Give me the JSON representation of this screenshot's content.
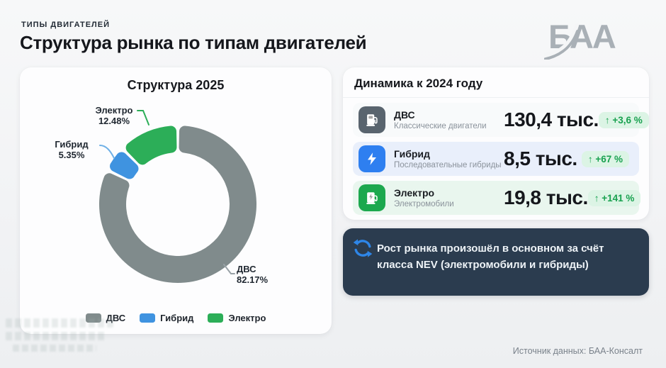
{
  "header": {
    "kicker": "ТИПЫ ДВИГАТЕЛЕЙ",
    "title": "Структура рынка по типам двигателей",
    "logo": "БАА"
  },
  "chart_data": {
    "type": "pie",
    "donut": true,
    "title": "Структура 2025",
    "labels": [
      "ДВС",
      "Гибрид",
      "Электро"
    ],
    "values": [
      82.17,
      5.35,
      12.48
    ],
    "pct_labels": [
      "82.17%",
      "5.35%",
      "12.48%"
    ],
    "colors": [
      "#808b8c",
      "#3f93e0",
      "#2cae58"
    ],
    "legend_position": "bottom"
  },
  "dynamics": {
    "title": "Динамика к 2024 году",
    "rows": [
      {
        "name": "ДВС",
        "desc": "Классические двигатели",
        "value": "130,4 тыс.",
        "delta": "↑ +3,6 %",
        "accent": "#59646e",
        "row_bg": "#f8fafb"
      },
      {
        "name": "Гибрид",
        "desc": "Последовательные гибриды",
        "value": "8,5 тыс.",
        "delta": "↑ +67 %",
        "accent": "#2e7ff0",
        "row_bg": "#e9effb"
      },
      {
        "name": "Электро",
        "desc": "Электромобили",
        "value": "19,8 тыс.",
        "delta": "↑ +141 %",
        "accent": "#1ca84e",
        "row_bg": "#e9f6ee"
      }
    ],
    "delta_color": "#18a14f",
    "delta_bg": "#dcf4e5"
  },
  "note": {
    "text": "Рост рынка произошёл в основном за счёт класса NEV (электромобили и гибриды)",
    "bg": "#2b3c4f",
    "icon_color": "#2e86e8"
  },
  "footer": {
    "source": "Источник данных: БАА-Консалт"
  }
}
